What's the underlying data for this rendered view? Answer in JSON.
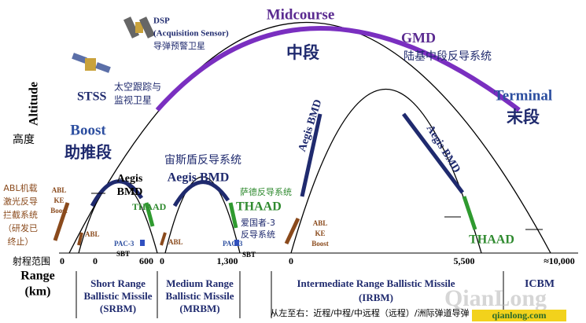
{
  "satellites": {
    "dsp": {
      "name": "DSP",
      "sensor": "(Acquisition Sensor)",
      "cn": "导弹预警卫星"
    },
    "stss": {
      "name": "STSS",
      "cn_line1": "太空跟踪与",
      "cn_line2": "监视卫星"
    }
  },
  "phases": {
    "boost": {
      "en": "Boost",
      "cn": "助推段"
    },
    "midcourse": {
      "en": "Midcourse",
      "cn": "中段"
    },
    "terminal": {
      "en": "Terminal",
      "cn": "末段"
    }
  },
  "gmd": {
    "en": "GMD",
    "cn": "陆基中段反导系统"
  },
  "abl_note": [
    "ABL机载",
    "激光反导",
    "拦截系统",
    "（研发已",
    "终止）"
  ],
  "srbm": {
    "abl_ke_boost": [
      "ABL",
      "KE",
      "Boost"
    ],
    "abl": "ABL",
    "aegis": [
      "Aegis",
      "BMD"
    ],
    "thaad": "THAAD",
    "pac3": "PAC-3",
    "sbt": "SBT"
  },
  "mrbm": {
    "aegis_cn": "宙斯盾反导系统",
    "aegis": "Aegis BMD",
    "thaad": "THAAD",
    "thaad_cn": "萨德反导系统",
    "pac3_cn": [
      "爱国者-3",
      "反导系统"
    ],
    "abl": "ABL",
    "pac3": "PAC-3",
    "sbt": "SBT"
  },
  "irbm": {
    "aegis_left": "Aegis BMD",
    "abl_ke_boost": [
      "ABL",
      "KE",
      "Boost"
    ],
    "aegis_right": "Aegis BMD",
    "thaad": "THAAD"
  },
  "axis": {
    "y_en": "Altitude",
    "y_cn": "高度",
    "x_cn": "射程范围",
    "x_en": "Range",
    "x_unit": "(km)",
    "ticks": [
      "0",
      "0",
      "600",
      "0",
      "1,300",
      "0",
      "5,500",
      "≈10,000"
    ]
  },
  "classes": [
    {
      "lines": [
        "Short Range",
        "Ballistic Missile",
        "(SRBM)"
      ]
    },
    {
      "lines": [
        "Medium Range",
        "Ballistic Missile",
        "(MRBM)"
      ]
    },
    {
      "lines": [
        "Intermediate Range Ballistic Missile",
        "(IRBM)"
      ]
    },
    {
      "lines": [
        "ICBM"
      ]
    }
  ],
  "footer": "从左至右：近程/中程/中远程（远程）/洲际弹道导弹",
  "watermark": {
    "brand": "QianLong",
    "site": "qianlong.com"
  }
}
